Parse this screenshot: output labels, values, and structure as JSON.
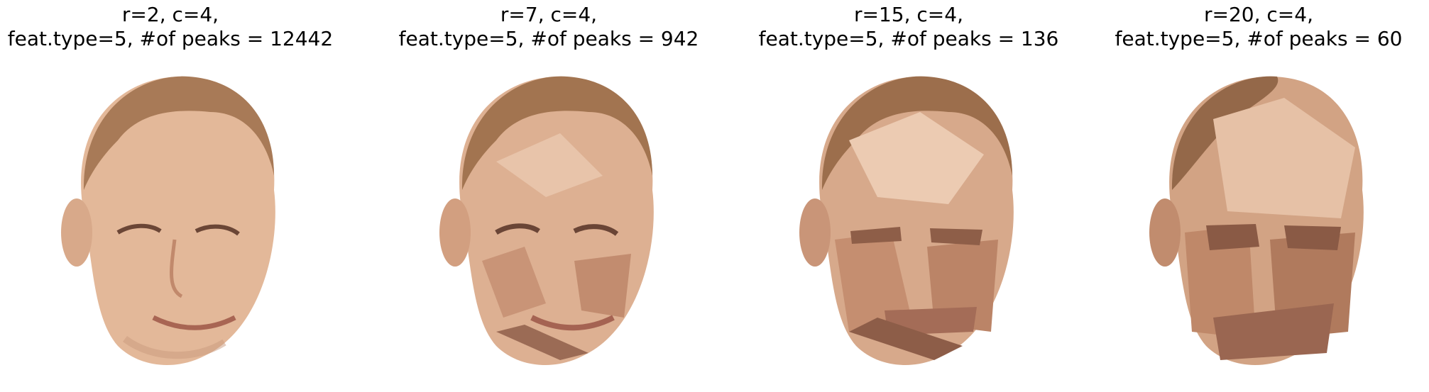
{
  "panels": [
    {
      "title_line1": "r=2, c=4,",
      "title_line2": "feat.type=5, #of peaks = 12442",
      "image": "face-photo-original",
      "segments": 0
    },
    {
      "title_line1": "r=7, c=4,",
      "title_line2": "feat.type=5, #of peaks = 942",
      "image": "face-photo-segmented",
      "segments": 942
    },
    {
      "title_line1": "r=15, c=4,",
      "title_line2": "feat.type=5, #of peaks = 136",
      "image": "face-photo-segmented",
      "segments": 136
    },
    {
      "title_line1": "r=20, c=4,",
      "title_line2": "feat.type=5, #of peaks = 60",
      "image": "face-photo-segmented",
      "segments": 60
    }
  ],
  "colors": {
    "skin_light": "#e8c2a6",
    "skin_mid": "#d3a083",
    "skin_dark": "#b57b5e",
    "hair": "#9a7050",
    "shadow": "#7e5340",
    "lip": "#b8705e",
    "eye": "#5a3b30"
  }
}
